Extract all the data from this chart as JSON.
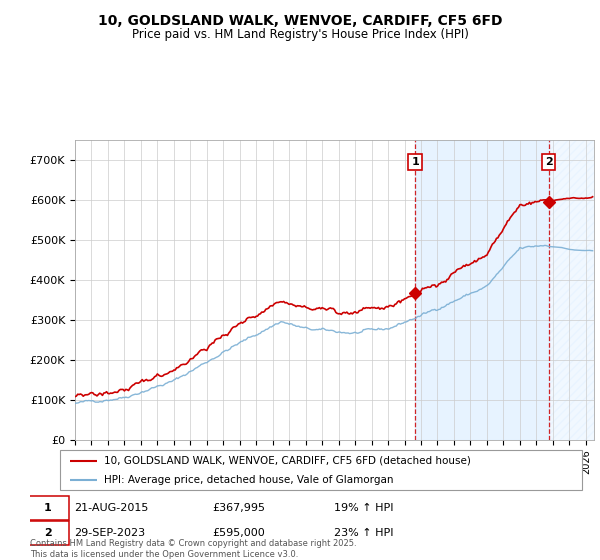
{
  "title_line1": "10, GOLDSLAND WALK, WENVOE, CARDIFF, CF5 6FD",
  "title_line2": "Price paid vs. HM Land Registry's House Price Index (HPI)",
  "ylim": [
    0,
    750000
  ],
  "yticks": [
    0,
    100000,
    200000,
    300000,
    400000,
    500000,
    600000,
    700000
  ],
  "ytick_labels": [
    "£0",
    "£100K",
    "£200K",
    "£300K",
    "£400K",
    "£500K",
    "£600K",
    "£700K"
  ],
  "xlim_start": 1995.0,
  "xlim_end": 2026.5,
  "sale1_date": 2015.64,
  "sale1_price": 367995,
  "sale1_label": "1",
  "sale2_date": 2023.75,
  "sale2_price": 595000,
  "sale2_label": "2",
  "legend_line1": "10, GOLDSLAND WALK, WENVOE, CARDIFF, CF5 6FD (detached house)",
  "legend_line2": "HPI: Average price, detached house, Vale of Glamorgan",
  "footnote": "Contains HM Land Registry data © Crown copyright and database right 2025.\nThis data is licensed under the Open Government Licence v3.0.",
  "red_color": "#cc0000",
  "blue_color": "#7bafd4",
  "bg_shaded_color": "#ddeeff"
}
